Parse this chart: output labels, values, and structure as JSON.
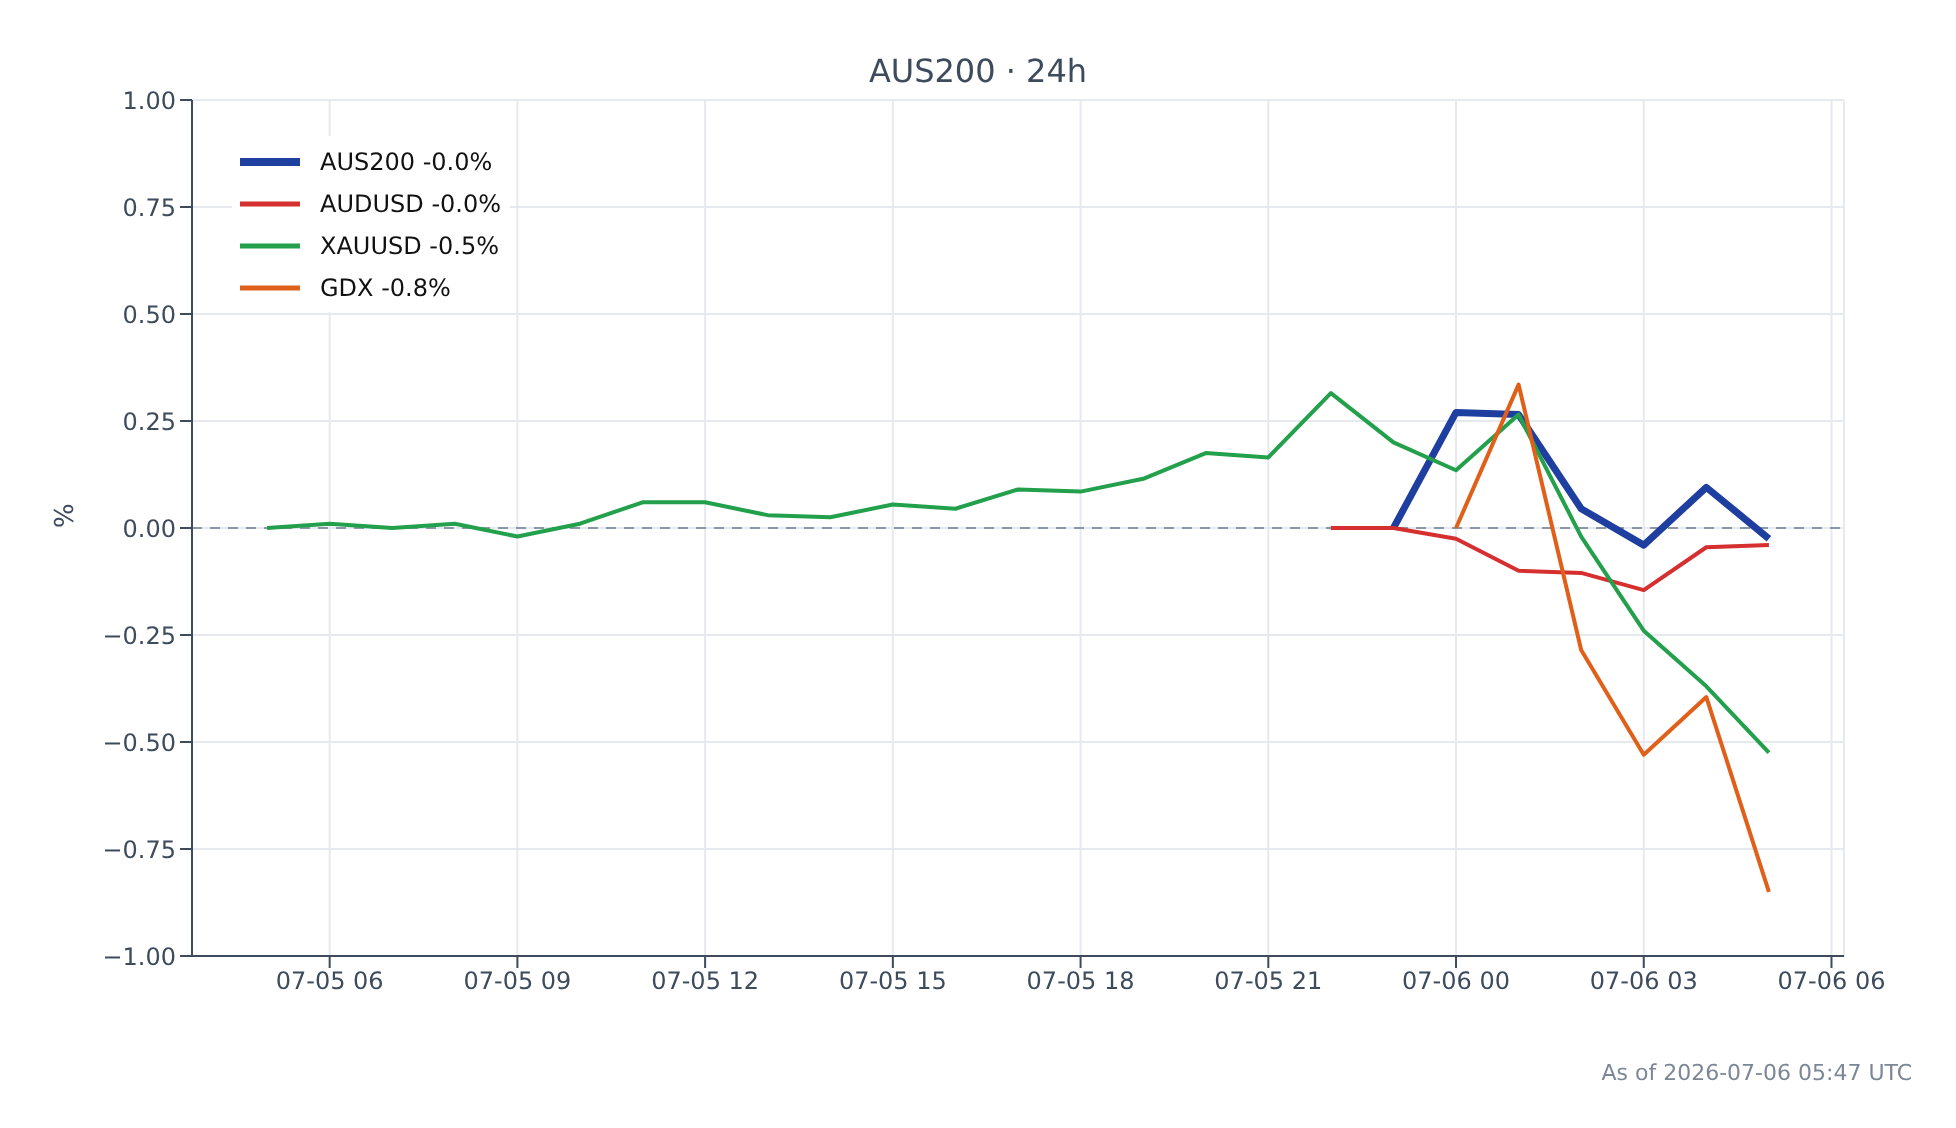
{
  "chart_data": {
    "type": "line",
    "title": "AUS200 · 24h",
    "ylabel": "%",
    "annotations": [
      "As of 2026-07-06 05:47 UTC"
    ],
    "x": [
      "2026-07-05T05:00",
      "2026-07-05T06:00",
      "2026-07-05T07:00",
      "2026-07-05T08:00",
      "2026-07-05T09:00",
      "2026-07-05T10:00",
      "2026-07-05T11:00",
      "2026-07-05T12:00",
      "2026-07-05T13:00",
      "2026-07-05T14:00",
      "2026-07-05T15:00",
      "2026-07-05T16:00",
      "2026-07-05T17:00",
      "2026-07-05T18:00",
      "2026-07-05T19:00",
      "2026-07-05T20:00",
      "2026-07-05T21:00",
      "2026-07-05T22:00",
      "2026-07-05T23:00",
      "2026-07-06T00:00",
      "2026-07-06T01:00",
      "2026-07-06T02:00",
      "2026-07-06T03:00",
      "2026-07-06T04:00",
      "2026-07-06T05:00"
    ],
    "xlim": [
      "2026-07-05T03:48",
      "2026-07-06T06:12"
    ],
    "xticks": [
      {
        "value": "2026-07-05T06:00",
        "label": "07-05 06"
      },
      {
        "value": "2026-07-05T09:00",
        "label": "07-05 09"
      },
      {
        "value": "2026-07-05T12:00",
        "label": "07-05 12"
      },
      {
        "value": "2026-07-05T15:00",
        "label": "07-05 15"
      },
      {
        "value": "2026-07-05T18:00",
        "label": "07-05 18"
      },
      {
        "value": "2026-07-05T21:00",
        "label": "07-05 21"
      },
      {
        "value": "2026-07-06T00:00",
        "label": "07-06 00"
      },
      {
        "value": "2026-07-06T03:00",
        "label": "07-06 03"
      },
      {
        "value": "2026-07-06T06:00",
        "label": "07-06 06"
      }
    ],
    "ylim": [
      -1,
      1
    ],
    "yticks": [
      {
        "value": -1,
        "label": "−1.00"
      },
      {
        "value": -0.75,
        "label": "−0.75"
      },
      {
        "value": -0.5,
        "label": "−0.50"
      },
      {
        "value": -0.25,
        "label": "−0.25"
      },
      {
        "value": 0,
        "label": "0.00"
      },
      {
        "value": 0.25,
        "label": "0.25"
      },
      {
        "value": 0.5,
        "label": "0.50"
      },
      {
        "value": 0.75,
        "label": "0.75"
      },
      {
        "value": 1,
        "label": "1.00"
      }
    ],
    "series": [
      {
        "name": "AUS200 -0.0%",
        "color": "#1f3fa0",
        "values": [
          null,
          null,
          null,
          null,
          null,
          null,
          null,
          null,
          null,
          null,
          null,
          null,
          null,
          null,
          null,
          null,
          null,
          null,
          0.0,
          0.27,
          0.265,
          0.045,
          -0.04,
          0.095,
          -0.025
        ]
      },
      {
        "name": "AUDUSD -0.0%",
        "color": "#d62f2f",
        "values": [
          null,
          null,
          null,
          null,
          null,
          null,
          null,
          null,
          null,
          null,
          null,
          null,
          null,
          null,
          null,
          null,
          null,
          0.0,
          0.0,
          -0.025,
          -0.1,
          -0.105,
          -0.145,
          -0.045,
          -0.04
        ]
      },
      {
        "name": "XAUUSD -0.5%",
        "color": "#22a04b",
        "values": [
          0.0,
          0.01,
          0.0,
          0.01,
          -0.02,
          0.01,
          0.06,
          0.06,
          0.03,
          0.025,
          0.055,
          0.045,
          0.09,
          0.085,
          0.115,
          0.175,
          0.165,
          0.315,
          0.2,
          0.135,
          0.265,
          -0.02,
          -0.24,
          -0.37,
          -0.525
        ]
      },
      {
        "name": "GDX -0.8%",
        "color": "#e0601a",
        "values": [
          null,
          null,
          null,
          null,
          null,
          null,
          null,
          null,
          null,
          null,
          null,
          null,
          null,
          null,
          null,
          null,
          null,
          null,
          null,
          0.0,
          0.335,
          -0.285,
          -0.53,
          -0.395,
          -0.85
        ]
      }
    ],
    "ref_lines": [
      {
        "axis": "y",
        "value": 0,
        "color": "#8a97a8",
        "line_style": "dashed"
      }
    ],
    "grid": true,
    "legend": "top left",
    "line_style": "solid",
    "marker": "none"
  }
}
